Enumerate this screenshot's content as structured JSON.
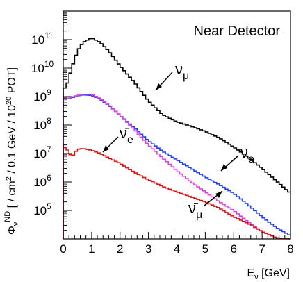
{
  "chart_data": {
    "type": "line",
    "title": "Near Detector",
    "xlabel": "E_ν [GeV]",
    "ylabel": "Φ_ν^ND [ / cm² / 0.1 GeV / 10²⁰ POT]",
    "x_ticks": [
      0,
      1,
      2,
      3,
      4,
      5,
      6,
      7,
      8
    ],
    "y_ticks": [
      100000.0,
      1000000.0,
      10000000.0,
      100000000.0,
      1000000000.0,
      10000000000.0,
      100000000000.0
    ],
    "xlim": [
      0,
      8
    ],
    "ylim": [
      10000,
      1000000000000.0
    ],
    "yscale": "log",
    "grid": false,
    "bin_width": 0.1,
    "x": [
      0.1,
      0.3,
      0.5,
      0.7,
      1.0,
      1.3,
      1.6,
      2.0,
      2.5,
      3.0,
      3.5,
      4.0,
      4.5,
      5.0,
      5.5,
      6.0,
      6.5,
      7.0,
      7.5,
      8.0
    ],
    "series": [
      {
        "name": "ν_μ",
        "color": "#000000",
        "values": [
          2000000000.0,
          10000000000.0,
          40000000000.0,
          80000000000.0,
          115000000000.0,
          80000000000.0,
          40000000000.0,
          12000000000.0,
          3200000000.0,
          700000000.0,
          230000000.0,
          130000000.0,
          90000000.0,
          60000000.0,
          35000000.0,
          17000000.0,
          7500000.0,
          3000000.0,
          1100000.0,
          400000.0
        ]
      },
      {
        "name": "ν_e",
        "color": "#1f3fff",
        "values": [
          850000000.0,
          900000000.0,
          1050000000.0,
          1150000000.0,
          1100000000.0,
          800000000.0,
          500000000.0,
          220000000.0,
          80000000.0,
          28000000.0,
          12000000.0,
          6000000.0,
          3000000.0,
          1500000.0,
          800000.0,
          400000.0,
          160000.0,
          60000.0,
          25000.0,
          13000.0
        ]
      },
      {
        "name": "ν̄_μ",
        "color": "#e040e0",
        "values": [
          850000000.0,
          950000000.0,
          1100000000.0,
          1200000000.0,
          1200000000.0,
          850000000.0,
          520000000.0,
          220000000.0,
          70000000.0,
          20000000.0,
          7000000.0,
          2500000.0,
          1000000.0,
          450000.0,
          200000.0,
          100000.0,
          40000.0,
          18000.0,
          11000.0,
          10000.0
        ]
      },
      {
        "name": "ν̄_e",
        "color": "#e01010",
        "values": [
          16000000.0,
          7500000.0,
          14000000.0,
          15000000.0,
          13000000.0,
          10000000.0,
          7000000.0,
          4500000.0,
          2200000.0,
          1200000.0,
          700000.0,
          450000.0,
          300000.0,
          200000.0,
          120000.0,
          60000.0,
          35000.0,
          18000.0,
          11000.0,
          10000.0
        ]
      }
    ],
    "annotations": [
      {
        "text": "ν_μ",
        "x": 3.2,
        "y": 700000000.0
      },
      {
        "text": "ν_e",
        "x": 5.6,
        "y": 2500000.0
      },
      {
        "text": "ν̄_e",
        "x": 1.4,
        "y": 9000000.0
      },
      {
        "text": "ν̄_μ",
        "x": 5.6,
        "y": 260000.0
      }
    ]
  }
}
